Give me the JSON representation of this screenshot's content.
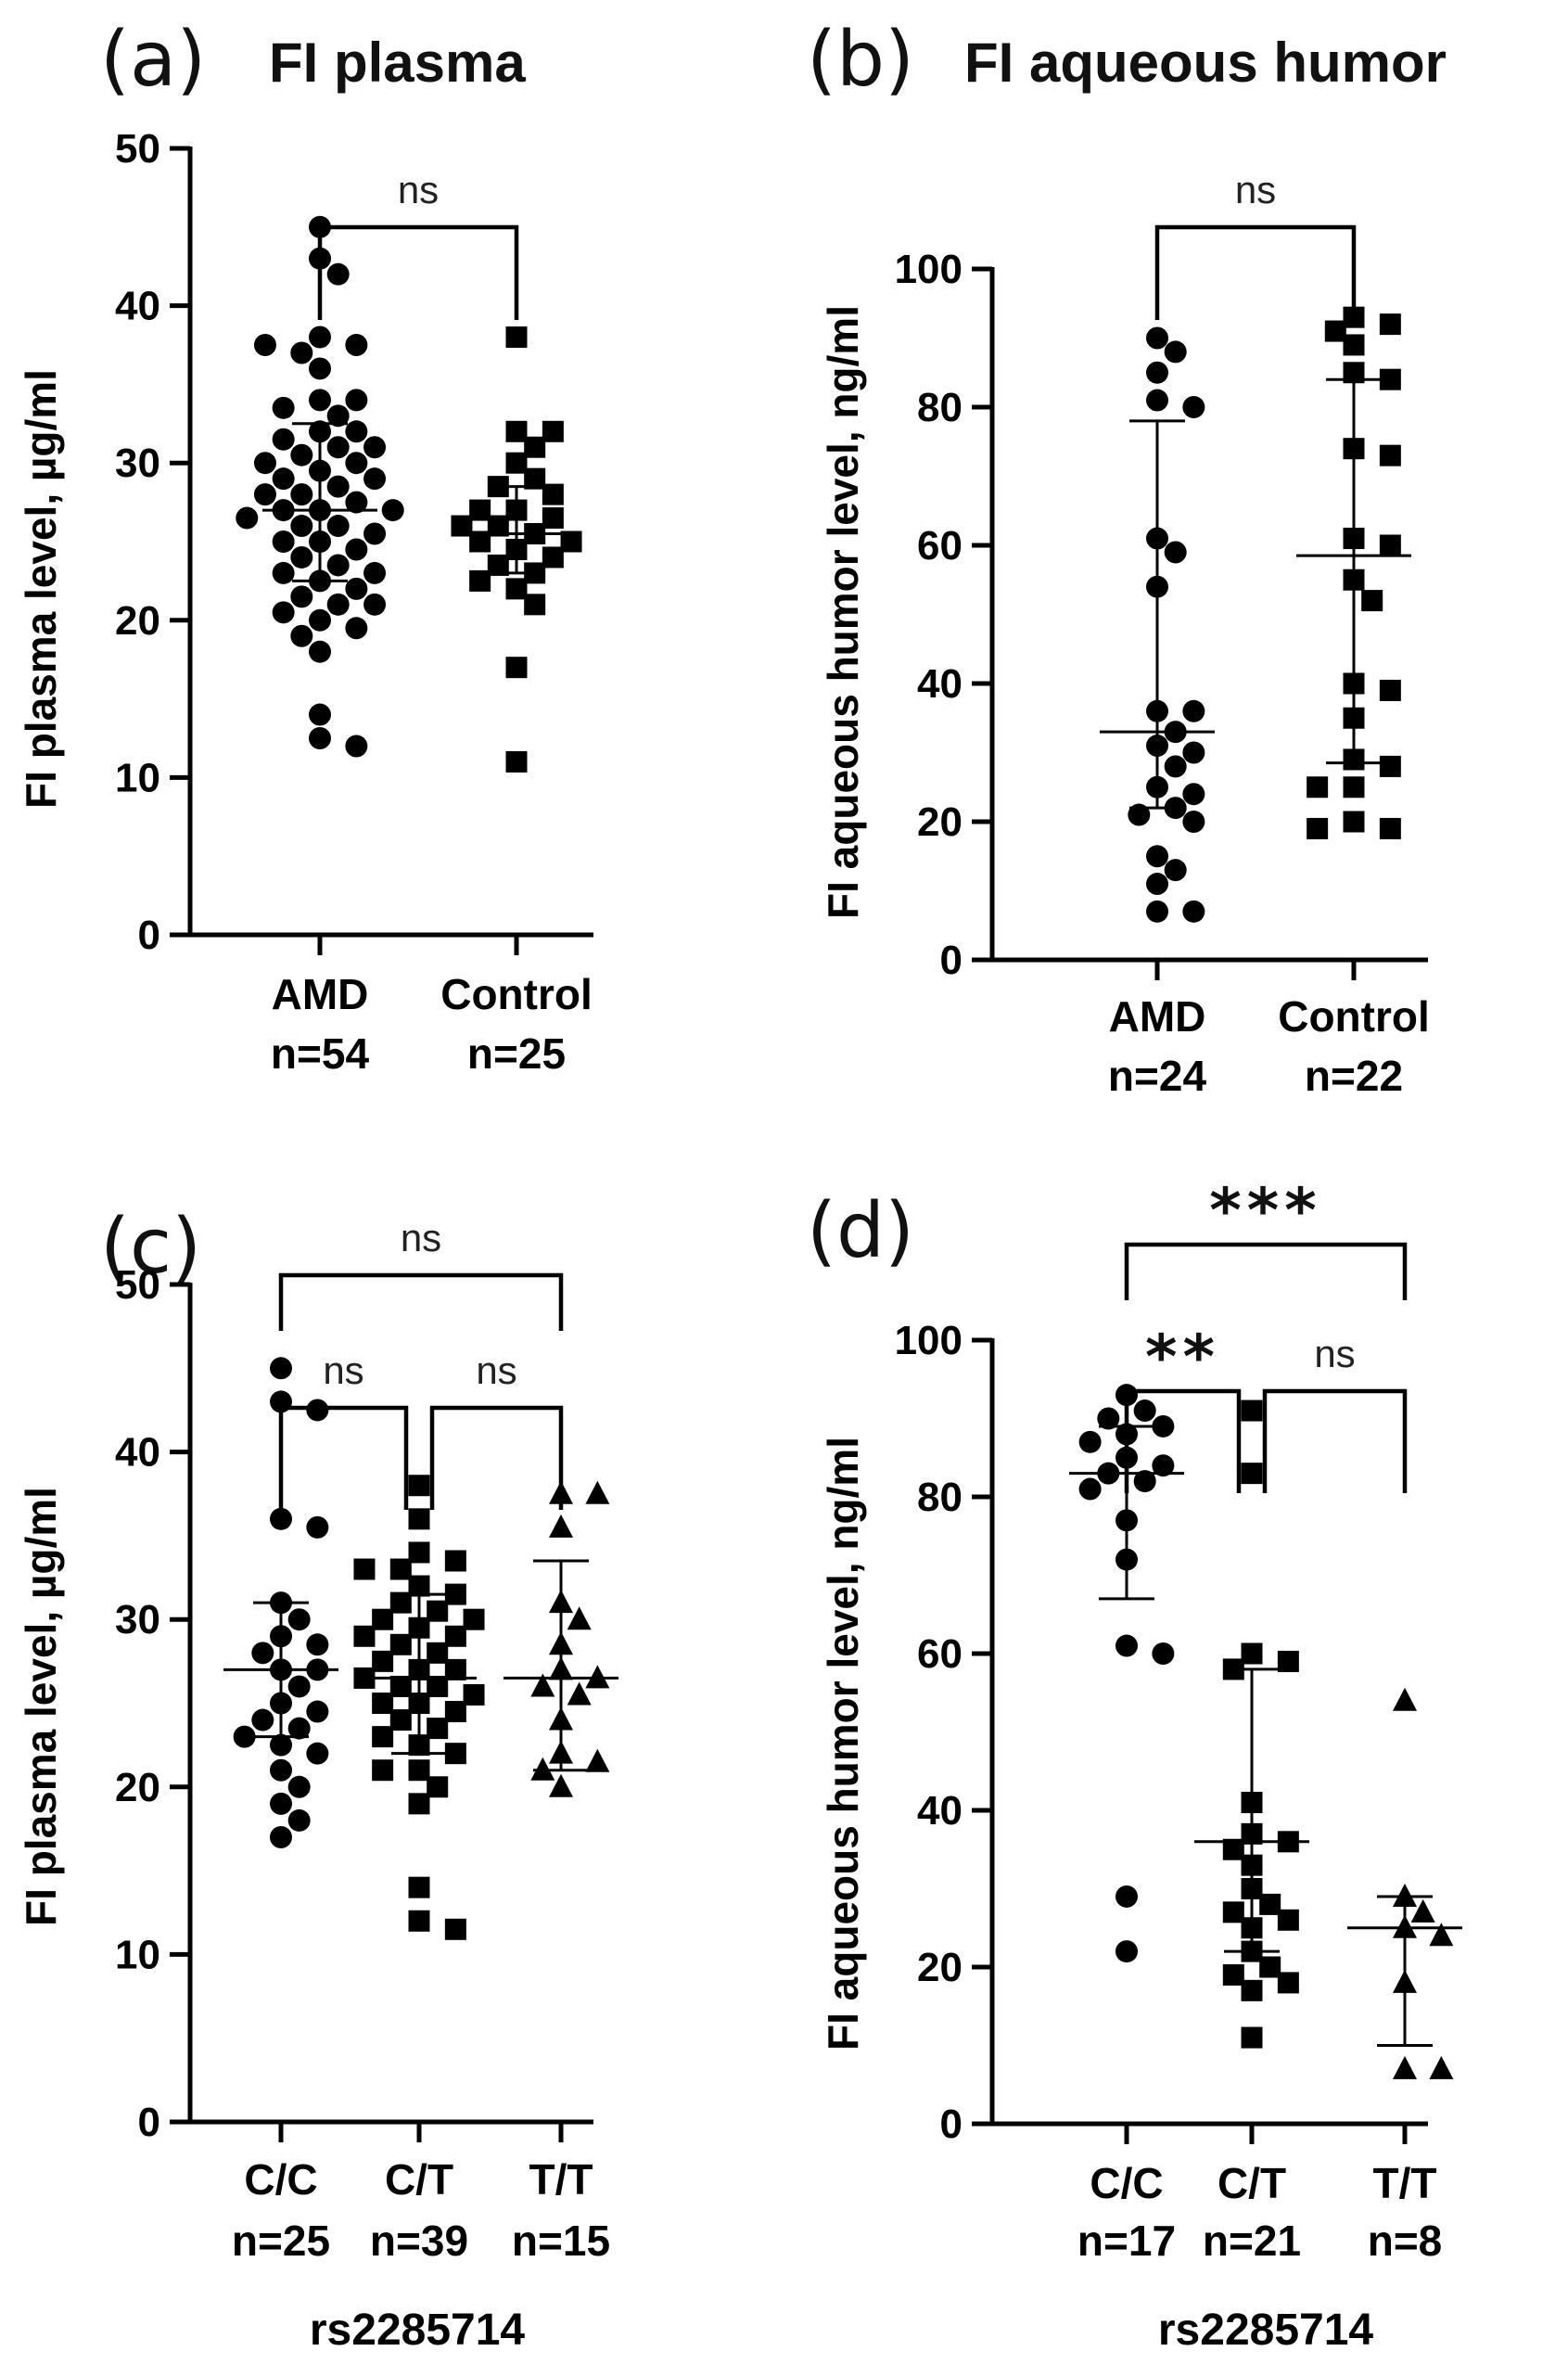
{
  "chart_data": [
    {
      "id": "a",
      "type": "scatter",
      "panel_label": "(a)",
      "title": "FI plasma",
      "ylabel": "FI plasma level, µg/ml",
      "xlabel": "",
      "ylim": [
        0,
        50
      ],
      "yticks": [
        0,
        10,
        20,
        30,
        40,
        50
      ],
      "categories": [
        {
          "name": "AMD",
          "n_label": "n=54",
          "marker": "circle",
          "median": 27,
          "iqr": [
            22.5,
            32.5
          ],
          "values": [
            45,
            43,
            42,
            38,
            37.5,
            37,
            37.5,
            36,
            34,
            34,
            33.5,
            33,
            32,
            32,
            31.5,
            31,
            31,
            30.5,
            30,
            30,
            29.5,
            29,
            29,
            28.5,
            28,
            28,
            27.5,
            27,
            27,
            27,
            26.5,
            26,
            26,
            25.5,
            25,
            25,
            24.5,
            24,
            23.5,
            23,
            23,
            22.5,
            22,
            21.5,
            21,
            21,
            20.5,
            20,
            19.5,
            19,
            18,
            14,
            12.5,
            12
          ]
        },
        {
          "name": "Control",
          "n_label": "n=25",
          "marker": "square",
          "median": 25.5,
          "iqr": [
            23,
            28.5
          ],
          "values": [
            38,
            32,
            32,
            31,
            30,
            29,
            28.5,
            28,
            27,
            27,
            26.5,
            26,
            26,
            25.5,
            25,
            25,
            24.5,
            24,
            23.5,
            23,
            22.5,
            22,
            21,
            17,
            11
          ]
        }
      ],
      "comparisons": [
        {
          "from": 0,
          "to": 1,
          "label": "ns"
        }
      ]
    },
    {
      "id": "b",
      "type": "scatter",
      "panel_label": "(b)",
      "title": "FI aqueous humor",
      "ylabel": "FI aqueous humor level, ng/ml",
      "xlabel": "",
      "ylim": [
        0,
        100
      ],
      "yticks": [
        0,
        20,
        40,
        60,
        80,
        100
      ],
      "categories": [
        {
          "name": "AMD",
          "n_label": "n=24",
          "marker": "circle",
          "median": 33,
          "iqr": [
            22,
            78
          ],
          "values": [
            90,
            88,
            85,
            81,
            80,
            61,
            59,
            54,
            36,
            36,
            33,
            31,
            30,
            28,
            25,
            24,
            22,
            21,
            20,
            15,
            13,
            11,
            7,
            7
          ]
        },
        {
          "name": "Control",
          "n_label": "n=22",
          "marker": "square",
          "median": 58.5,
          "iqr": [
            28.5,
            84
          ],
          "values": [
            93,
            92,
            91,
            89,
            85,
            84,
            74,
            73,
            61,
            60,
            55,
            52,
            40,
            39,
            35,
            29,
            28,
            25,
            25,
            20,
            19,
            19
          ]
        }
      ],
      "comparisons": [
        {
          "from": 0,
          "to": 1,
          "label": "ns"
        }
      ]
    },
    {
      "id": "c",
      "type": "scatter",
      "panel_label": "(c)",
      "title": "",
      "ylabel": "FI plasma level, µg/ml",
      "xlabel": "rs2285714",
      "ylim": [
        0,
        50
      ],
      "yticks": [
        0,
        10,
        20,
        30,
        40,
        50
      ],
      "categories": [
        {
          "name": "C/C",
          "n_label": "n=25",
          "marker": "circle",
          "median": 27,
          "iqr": [
            23,
            31
          ],
          "values": [
            45,
            43,
            42.5,
            36,
            35.5,
            31,
            30,
            29,
            28.5,
            28,
            27,
            27,
            26,
            25,
            24.5,
            24,
            23.5,
            23,
            22.5,
            22,
            21,
            20,
            19,
            18,
            17
          ]
        },
        {
          "name": "C/T",
          "n_label": "n=39",
          "marker": "square",
          "median": 26.5,
          "iqr": [
            22,
            31.5
          ],
          "values": [
            38,
            36,
            34,
            33.5,
            33,
            33,
            32,
            31.5,
            31,
            30.5,
            30,
            30,
            29.5,
            29,
            29,
            28.5,
            28,
            27.5,
            27,
            27,
            26.5,
            26,
            26,
            25.5,
            25,
            25,
            24.5,
            24,
            23.5,
            23,
            22.5,
            22,
            21,
            21,
            20,
            19,
            14,
            12,
            11.5
          ]
        },
        {
          "name": "T/T",
          "n_label": "n=15",
          "marker": "triangle",
          "median": 26.5,
          "iqr": [
            21,
            33.5
          ],
          "values": [
            37.5,
            37.5,
            35.5,
            31,
            30,
            28.5,
            27,
            26.5,
            26,
            25.5,
            24,
            22,
            21.5,
            21,
            20
          ]
        }
      ],
      "comparisons": [
        {
          "from": 0,
          "to": 1,
          "label": "ns"
        },
        {
          "from": 1,
          "to": 2,
          "label": "ns"
        },
        {
          "from": 0,
          "to": 2,
          "label": "ns"
        }
      ]
    },
    {
      "id": "d",
      "type": "scatter",
      "panel_label": "(d)",
      "title": "",
      "ylabel": "FI aqueous humor level, ng/ml",
      "xlabel": "rs2285714",
      "ylim": [
        0,
        100
      ],
      "yticks": [
        0,
        20,
        40,
        60,
        80,
        100
      ],
      "categories": [
        {
          "name": "C/C",
          "n_label": "n=17",
          "marker": "circle",
          "median": 83,
          "iqr": [
            67,
            89
          ],
          "values": [
            93,
            91,
            90,
            89,
            88,
            87,
            85,
            84,
            83,
            82,
            81,
            77,
            72,
            61,
            60,
            29,
            22
          ]
        },
        {
          "name": "C/T",
          "n_label": "n=21",
          "marker": "square",
          "median": 36,
          "iqr": [
            22,
            58
          ],
          "values": [
            91,
            83,
            60,
            59,
            58,
            41,
            37,
            36,
            35,
            33,
            30,
            28,
            27,
            26,
            25,
            22,
            20,
            19,
            18,
            17,
            11
          ]
        },
        {
          "name": "T/T",
          "n_label": "n=8",
          "marker": "triangle",
          "median": 25,
          "iqr": [
            10,
            29
          ],
          "values": [
            54,
            29,
            27,
            25,
            24,
            18,
            7,
            7
          ]
        }
      ],
      "comparisons": [
        {
          "from": 0,
          "to": 1,
          "label": "**"
        },
        {
          "from": 1,
          "to": 2,
          "label": "ns"
        },
        {
          "from": 0,
          "to": 2,
          "label": "***"
        }
      ]
    }
  ]
}
